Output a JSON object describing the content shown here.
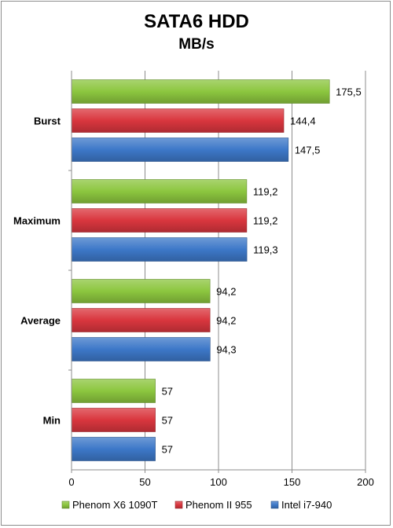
{
  "chart_data": {
    "type": "bar",
    "orientation": "horizontal",
    "title": "SATA6 HDD",
    "subtitle": "MB/s",
    "categories": [
      "Burst",
      "Maximum",
      "Average",
      "Min"
    ],
    "series": [
      {
        "name": "Phenom X6 1090T",
        "color": "#8cc63f",
        "values": [
          175.5,
          119.2,
          94.2,
          57
        ],
        "labels": [
          "175,5",
          "119,2",
          "94,2",
          "57"
        ]
      },
      {
        "name": "Phenom II 955",
        "color": "#d9363e",
        "values": [
          144.4,
          119.2,
          94.2,
          57
        ],
        "labels": [
          "144,4",
          "119,2",
          "94,2",
          "57"
        ]
      },
      {
        "name": "Intel i7-940",
        "color": "#3d78c8",
        "values": [
          147.5,
          119.3,
          94.3,
          57
        ],
        "labels": [
          "147,5",
          "119,3",
          "94,3",
          "57"
        ]
      }
    ],
    "xlim": [
      0,
      200
    ],
    "xticks": [
      0,
      50,
      100,
      150,
      200
    ],
    "grid": true,
    "legend": "bottom"
  }
}
